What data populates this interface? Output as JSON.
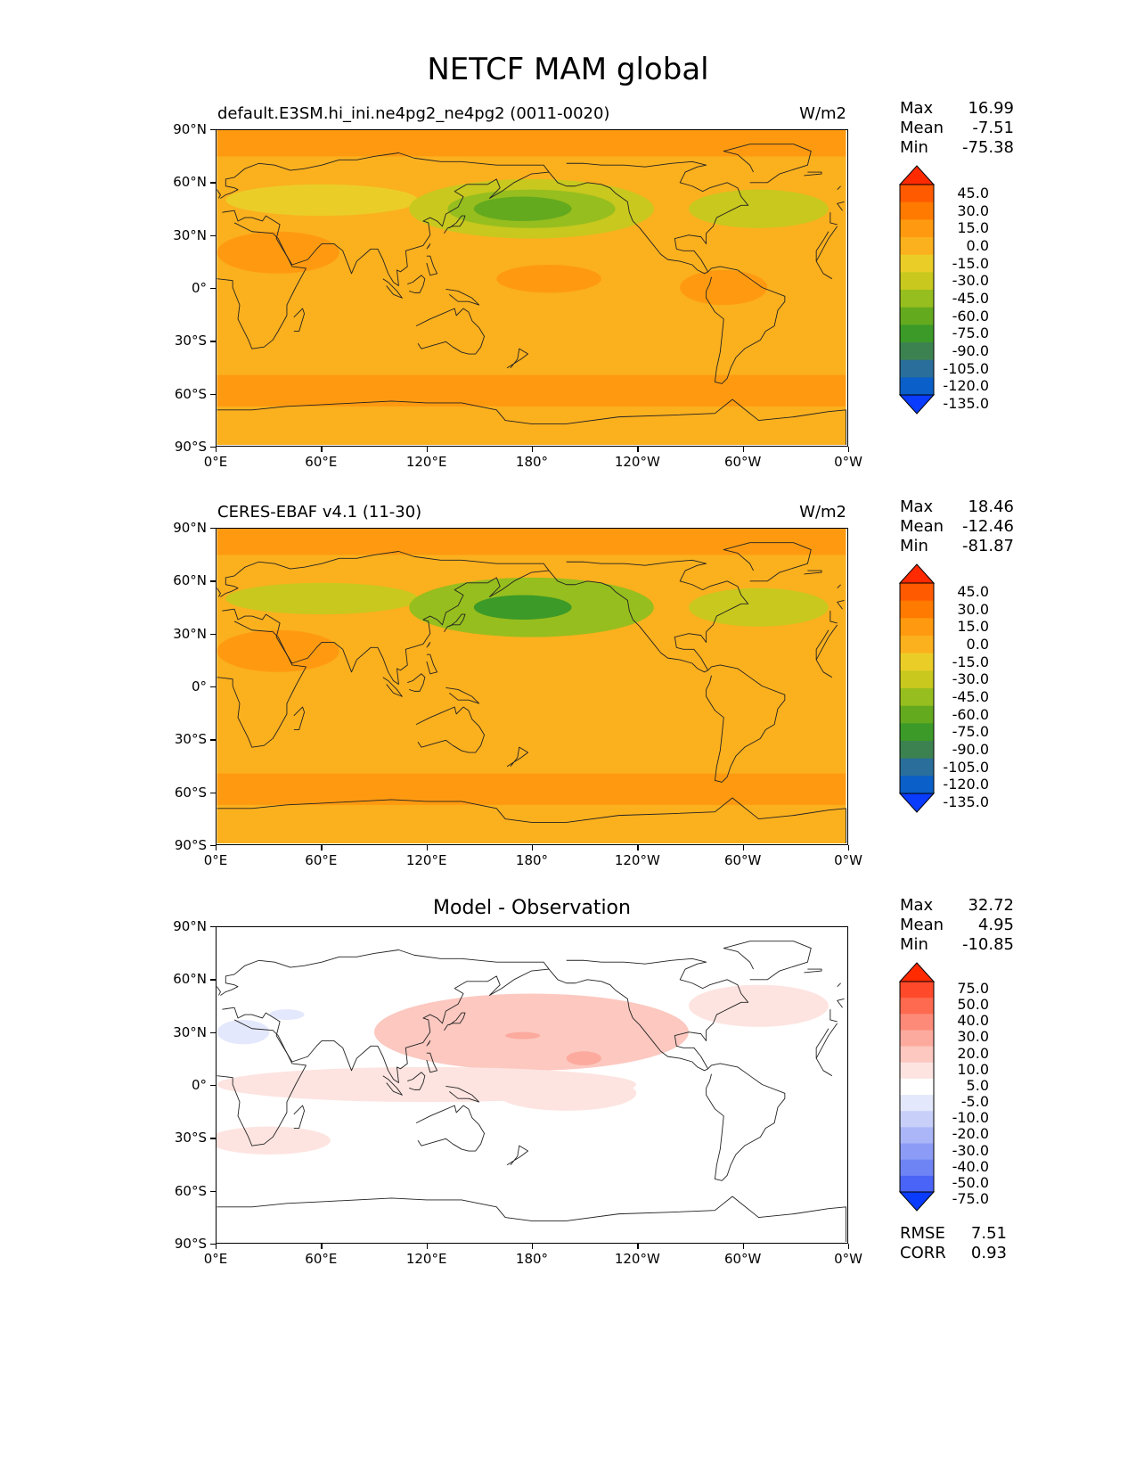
{
  "figure": {
    "title": "NETCF MAM global"
  },
  "panels": [
    {
      "id": "model",
      "title_left": "default.E3SM.hi_ini.ne4pg2_ne4pg2 (0011-0020)",
      "title_right": "W/m2",
      "title_center": "",
      "stats": {
        "max_label": "Max",
        "max": "16.99",
        "mean_label": "Mean",
        "mean": "-7.51",
        "min_label": "Min",
        "min": "-75.38"
      },
      "colorbar": {
        "labels": [
          "45.0",
          "30.0",
          "15.0",
          "0.0",
          "-15.0",
          "-30.0",
          "-45.0",
          "-60.0",
          "-75.0",
          "-90.0",
          "-105.0",
          "-120.0",
          "-135.0"
        ],
        "colors": [
          "#ff2a00",
          "#ff5a00",
          "#ff7a00",
          "#ff9a10",
          "#fbb01e",
          "#ebcd28",
          "#c8c81e",
          "#96be1e",
          "#64aa1e",
          "#3c9a28",
          "#3c8250",
          "#2a6e9b",
          "#0a5fc8",
          "#0a3cff"
        ]
      }
    },
    {
      "id": "obs",
      "title_left": "CERES-EBAF v4.1 (11-30)",
      "title_right": "W/m2",
      "title_center": "",
      "stats": {
        "max_label": "Max",
        "max": "18.46",
        "mean_label": "Mean",
        "mean": "-12.46",
        "min_label": "Min",
        "min": "-81.87"
      },
      "colorbar": {
        "labels": [
          "45.0",
          "30.0",
          "15.0",
          "0.0",
          "-15.0",
          "-30.0",
          "-45.0",
          "-60.0",
          "-75.0",
          "-90.0",
          "-105.0",
          "-120.0",
          "-135.0"
        ],
        "colors": [
          "#ff2a00",
          "#ff5a00",
          "#ff7a00",
          "#ff9a10",
          "#fbb01e",
          "#ebcd28",
          "#c8c81e",
          "#96be1e",
          "#64aa1e",
          "#3c9a28",
          "#3c8250",
          "#2a6e9b",
          "#0a5fc8",
          "#0a3cff"
        ]
      }
    },
    {
      "id": "diff",
      "title_left": "",
      "title_right": "",
      "title_center": "Model - Observation",
      "stats": {
        "max_label": "Max",
        "max": "32.72",
        "mean_label": "Mean",
        "mean": "4.95",
        "min_label": "Min",
        "min": "-10.85"
      },
      "colorbar": {
        "labels": [
          "75.0",
          "50.0",
          "40.0",
          "30.0",
          "20.0",
          "10.0",
          "5.0",
          "-5.0",
          "-10.0",
          "-20.0",
          "-30.0",
          "-40.0",
          "-50.0",
          "-75.0"
        ],
        "colors": [
          "#ff2a00",
          "#fe4a2a",
          "#fd6a50",
          "#fd8a78",
          "#fcaa9e",
          "#fcc8c0",
          "#fde4e0",
          "#ffffff",
          "#e4e8fc",
          "#c8d0fa",
          "#aab6f8",
          "#8c9cf6",
          "#6e84f5",
          "#4a64f8",
          "#0a3cff"
        ]
      },
      "footer": {
        "rmse_label": "RMSE",
        "rmse": "7.51",
        "corr_label": "CORR",
        "corr": "0.93"
      }
    }
  ],
  "axes": {
    "lat_labels": [
      "90°N",
      "60°N",
      "30°N",
      "0°",
      "30°S",
      "60°S",
      "90°S"
    ],
    "lon_labels": [
      "0°E",
      "60°E",
      "120°E",
      "180°",
      "120°W",
      "60°W",
      "0°W"
    ]
  },
  "chart_data": [
    {
      "type": "heatmap",
      "title": "default.E3SM.hi_ini.ne4pg2_ne4pg2 (0011-0020)",
      "units": "W/m2",
      "projection": "PlateCarree, central longitude 180",
      "xlim": [
        0,
        360
      ],
      "ylim": [
        -90,
        90
      ],
      "stats": {
        "max": 16.99,
        "mean": -7.51,
        "min": -75.38
      },
      "levels": [
        -135,
        -120,
        -105,
        -90,
        -75,
        -60,
        -45,
        -30,
        -15,
        0,
        15,
        30,
        45
      ],
      "regions": [
        {
          "region": "background",
          "value": -5
        },
        {
          "region": "Arctic band 75N-90N",
          "value": 5
        },
        {
          "region": "North Pacific storm track 35N-55N, 140E-200E",
          "value": -65
        },
        {
          "region": "North Pacific surroundings 30N-60N",
          "value": -40
        },
        {
          "region": "North Atlantic 40N-55N",
          "value": -40
        },
        {
          "region": "Eurasia 40N-60N",
          "value": -25
        },
        {
          "region": "Southern Ocean 50S-65S",
          "value": 10
        },
        {
          "region": "Arabian Sea / Africa tropics",
          "value": 5
        },
        {
          "region": "Tropical Pacific 0-10N, 160E-220E",
          "value": 5
        },
        {
          "region": "Antarctica",
          "value": -5
        }
      ]
    },
    {
      "type": "heatmap",
      "title": "CERES-EBAF v4.1 (11-30)",
      "units": "W/m2",
      "projection": "PlateCarree, central longitude 180",
      "xlim": [
        0,
        360
      ],
      "ylim": [
        -90,
        90
      ],
      "stats": {
        "max": 18.46,
        "mean": -12.46,
        "min": -81.87
      },
      "levels": [
        -135,
        -120,
        -105,
        -90,
        -75,
        -60,
        -45,
        -30,
        -15,
        0,
        15,
        30,
        45
      ],
      "regions": [
        {
          "region": "background",
          "value": -10
        },
        {
          "region": "Arctic band 75N-90N",
          "value": 5
        },
        {
          "region": "North Pacific storm track 35N-55N, 150E-210E",
          "value": -75
        },
        {
          "region": "North Pacific surroundings 25N-60N",
          "value": -45
        },
        {
          "region": "North Atlantic 35N-55N",
          "value": -40
        },
        {
          "region": "Eurasia 40N-60N",
          "value": -30
        },
        {
          "region": "Southern Ocean 55S-70S",
          "value": 10
        },
        {
          "region": "Arabian Sea / Sahara",
          "value": 5
        },
        {
          "region": "Antarctica",
          "value": -5
        }
      ]
    },
    {
      "type": "heatmap",
      "title": "Model - Observation",
      "units": "W/m2",
      "projection": "PlateCarree, central longitude 180",
      "xlim": [
        0,
        360
      ],
      "ylim": [
        -90,
        90
      ],
      "stats": {
        "max": 32.72,
        "mean": 4.95,
        "min": -10.85,
        "rmse": 7.51,
        "corr": 0.93
      },
      "levels": [
        -75,
        -50,
        -40,
        -30,
        -20,
        -10,
        -5,
        5,
        10,
        20,
        30,
        40,
        50,
        75
      ],
      "regions": [
        {
          "region": "background",
          "value": 0
        },
        {
          "region": "North Pacific 20N-50N, 130E-230E",
          "value": 12
        },
        {
          "region": "Central Pacific 10N-20N, 200E-220E",
          "value": 22
        },
        {
          "region": "Central Pacific 25N-30N, 165E-185E",
          "value": 22
        },
        {
          "region": "Tropical belt 0-20S",
          "value": 7
        },
        {
          "region": "North Atlantic 35N-60N",
          "value": 7
        },
        {
          "region": "Mediterranean / North Africa",
          "value": -7
        },
        {
          "region": "Southern mid-latitudes 25S-35S",
          "value": 7
        }
      ]
    }
  ]
}
